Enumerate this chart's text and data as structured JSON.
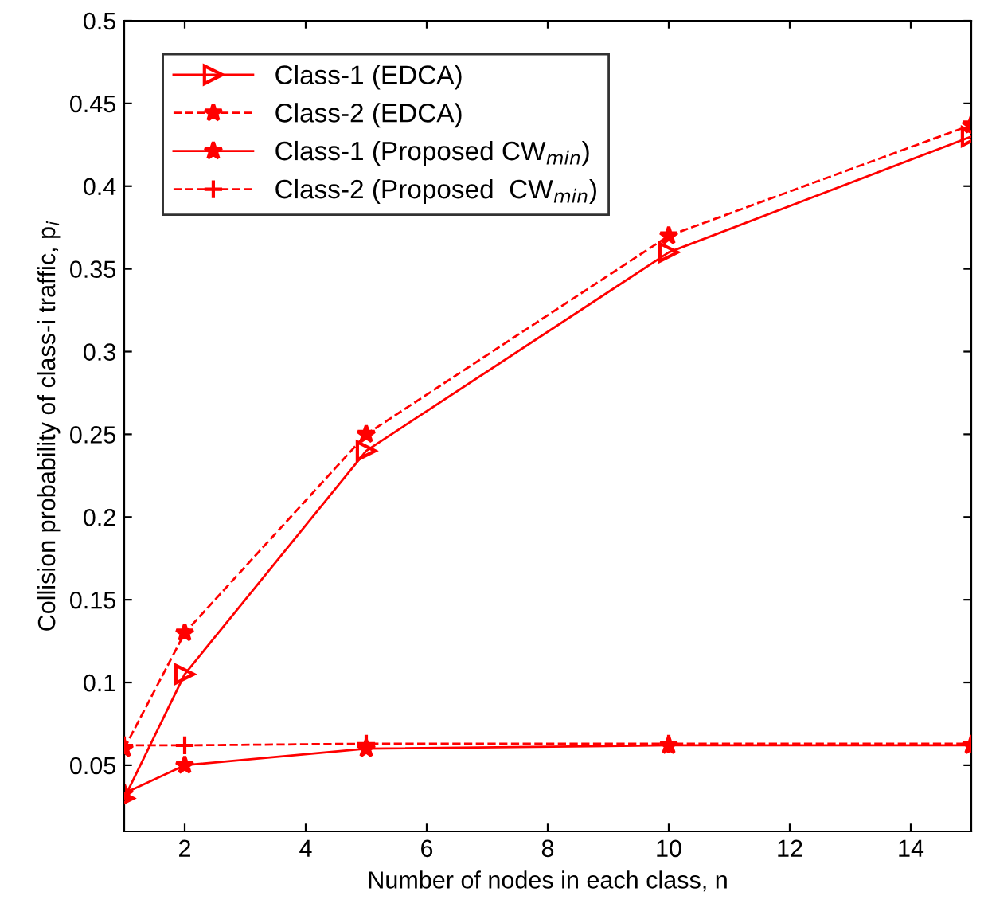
{
  "chart_data": {
    "type": "line",
    "xlabel": "Number of nodes in each class, n",
    "ylabel": "Collision probability of class-i traffic, p$_{i}$",
    "x": [
      1,
      2,
      5,
      10,
      15
    ],
    "series": [
      {
        "name": "Class-1 (EDCA)",
        "color": "#ff0000",
        "marker": "triangle",
        "line_style": "solid",
        "values": [
          0.03,
          0.105,
          0.24,
          0.36,
          0.43
        ]
      },
      {
        "name": "Class-2 (EDCA)",
        "color": "#ff0000",
        "marker": "star",
        "line_style": "dashed",
        "values": [
          0.06,
          0.13,
          0.25,
          0.37,
          0.437
        ]
      },
      {
        "name": "Class-1 (Proposed CW$_{min}$)",
        "color": "#ff0000",
        "marker": "star",
        "line_style": "solid",
        "values": [
          0.033,
          0.05,
          0.06,
          0.062,
          0.062
        ]
      },
      {
        "name": "Class-2 (Proposed  CW$_{min}$)",
        "color": "#ff0000",
        "marker": "cross",
        "line_style": "dashed",
        "values": [
          0.062,
          0.062,
          0.063,
          0.063,
          0.063
        ]
      }
    ],
    "xlim": [
      1,
      15
    ],
    "xticks": [
      2,
      4,
      6,
      8,
      10,
      12,
      14
    ],
    "ylim": [
      0.01,
      0.5
    ],
    "yticks": [
      0.05,
      0.1,
      0.15,
      0.2,
      0.25,
      0.3,
      0.35,
      0.4,
      0.45,
      0.5
    ],
    "grid": false,
    "legend": "top left"
  }
}
